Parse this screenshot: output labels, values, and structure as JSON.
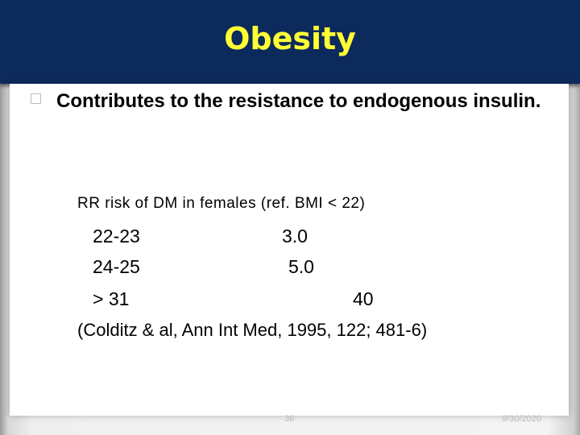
{
  "header": {
    "title": "Obesity"
  },
  "bullet": "Contributes to the resistance to endogenous insulin.",
  "subheading": "RR risk of DM in females (ref. BMI < 22)",
  "table": {
    "rows": [
      [
        "22-23",
        "3.0"
      ],
      [
        "24-25",
        "5.0"
      ],
      [
        "> 31",
        "40"
      ]
    ]
  },
  "citation": "(Colditz & al, Ann Int Med, 1995, 122; 481-6)",
  "footer": {
    "page": "36",
    "date": "9/30/2020"
  }
}
